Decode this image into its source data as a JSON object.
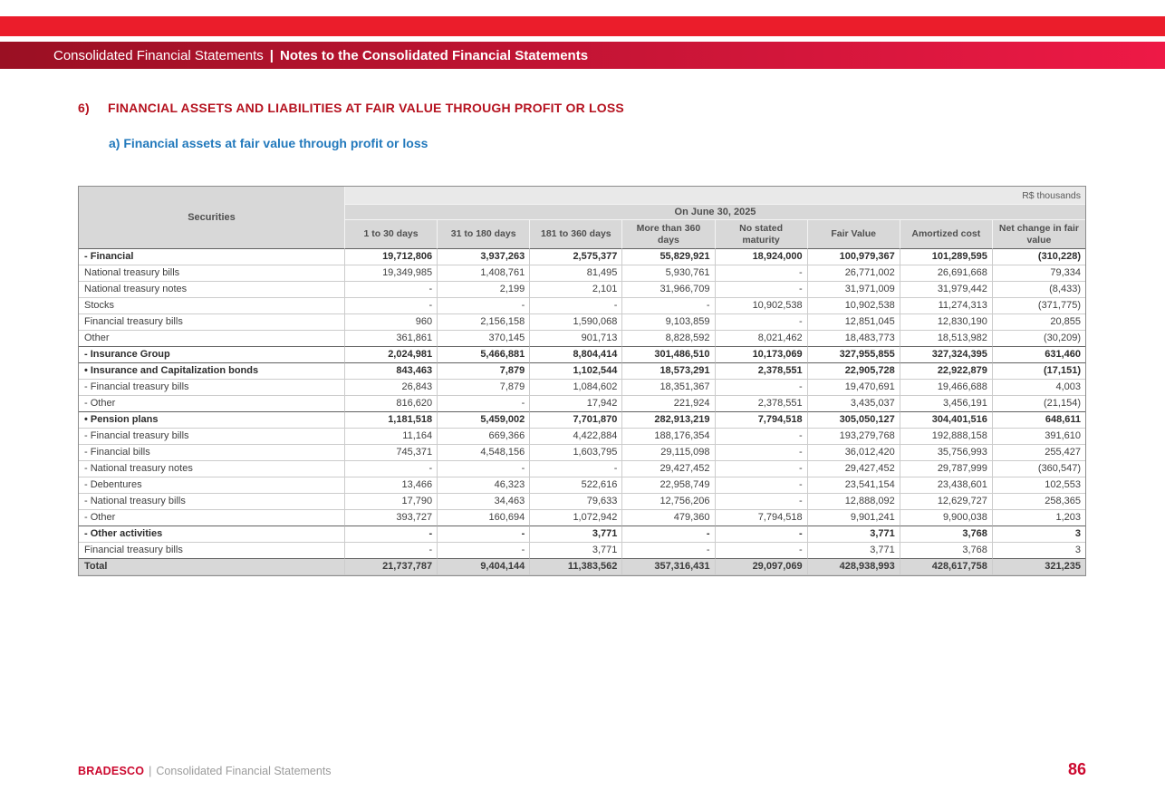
{
  "banner": {
    "title_left": "Consolidated Financial Statements",
    "separator": "|",
    "title_right": "Notes to the Consolidated Financial Statements"
  },
  "section": {
    "number": "6)",
    "title": "FINANCIAL ASSETS AND LIABILITIES AT FAIR VALUE THROUGH PROFIT OR LOSS",
    "subtitle": "a) Financial assets at fair value through profit or loss"
  },
  "table": {
    "units_label": "R$ thousands",
    "date_header": "On June 30, 2025",
    "securities_header": "Securities",
    "columns": [
      "1 to 30 days",
      "31 to 180 days",
      "181 to 360 days",
      "More than 360 days",
      "No stated maturity",
      "Fair Value",
      "Amortized cost",
      "Net change in fair value"
    ],
    "rows": [
      {
        "label": "- Financial",
        "style": "bold",
        "values": [
          "19,712,806",
          "3,937,263",
          "2,575,377",
          "55,829,921",
          "18,924,000",
          "100,979,367",
          "101,289,595",
          "(310,228)"
        ]
      },
      {
        "label": "National treasury bills",
        "style": "normal",
        "values": [
          "19,349,985",
          "1,408,761",
          "81,495",
          "5,930,761",
          "-",
          "26,771,002",
          "26,691,668",
          "79,334"
        ]
      },
      {
        "label": "National treasury notes",
        "style": "normal",
        "values": [
          "-",
          "2,199",
          "2,101",
          "31,966,709",
          "-",
          "31,971,009",
          "31,979,442",
          "(8,433)"
        ]
      },
      {
        "label": "Stocks",
        "style": "normal",
        "values": [
          "-",
          "-",
          "-",
          "-",
          "10,902,538",
          "10,902,538",
          "11,274,313",
          "(371,775)"
        ]
      },
      {
        "label": "Financial treasury bills",
        "style": "normal",
        "values": [
          "960",
          "2,156,158",
          "1,590,068",
          "9,103,859",
          "-",
          "12,851,045",
          "12,830,190",
          "20,855"
        ]
      },
      {
        "label": "Other",
        "style": "normal",
        "values": [
          "361,861",
          "370,145",
          "901,713",
          "8,828,592",
          "8,021,462",
          "18,483,773",
          "18,513,982",
          "(30,209)"
        ]
      },
      {
        "label": "- Insurance Group",
        "style": "bold",
        "values": [
          "2,024,981",
          "5,466,881",
          "8,804,414",
          "301,486,510",
          "10,173,069",
          "327,955,855",
          "327,324,395",
          "631,460"
        ]
      },
      {
        "label": "• Insurance and Capitalization bonds",
        "style": "bold",
        "values": [
          "843,463",
          "7,879",
          "1,102,544",
          "18,573,291",
          "2,378,551",
          "22,905,728",
          "22,922,879",
          "(17,151)"
        ]
      },
      {
        "label": "- Financial treasury bills",
        "style": "normal",
        "values": [
          "26,843",
          "7,879",
          "1,084,602",
          "18,351,367",
          "-",
          "19,470,691",
          "19,466,688",
          "4,003"
        ]
      },
      {
        "label": "- Other",
        "style": "normal",
        "values": [
          "816,620",
          "-",
          "17,942",
          "221,924",
          "2,378,551",
          "3,435,037",
          "3,456,191",
          "(21,154)"
        ]
      },
      {
        "label": "• Pension plans",
        "style": "bold",
        "values": [
          "1,181,518",
          "5,459,002",
          "7,701,870",
          "282,913,219",
          "7,794,518",
          "305,050,127",
          "304,401,516",
          "648,611"
        ]
      },
      {
        "label": "- Financial treasury bills",
        "style": "normal",
        "values": [
          "11,164",
          "669,366",
          "4,422,884",
          "188,176,354",
          "-",
          "193,279,768",
          "192,888,158",
          "391,610"
        ]
      },
      {
        "label": "- Financial bills",
        "style": "normal",
        "values": [
          "745,371",
          "4,548,156",
          "1,603,795",
          "29,115,098",
          "-",
          "36,012,420",
          "35,756,993",
          "255,427"
        ]
      },
      {
        "label": "- National treasury notes",
        "style": "normal",
        "values": [
          "-",
          "-",
          "-",
          "29,427,452",
          "-",
          "29,427,452",
          "29,787,999",
          "(360,547)"
        ]
      },
      {
        "label": "- Debentures",
        "style": "normal",
        "values": [
          "13,466",
          "46,323",
          "522,616",
          "22,958,749",
          "-",
          "23,541,154",
          "23,438,601",
          "102,553"
        ]
      },
      {
        "label": "- National treasury bills",
        "style": "normal",
        "values": [
          "17,790",
          "34,463",
          "79,633",
          "12,756,206",
          "-",
          "12,888,092",
          "12,629,727",
          "258,365"
        ]
      },
      {
        "label": "- Other",
        "style": "normal",
        "values": [
          "393,727",
          "160,694",
          "1,072,942",
          "479,360",
          "7,794,518",
          "9,901,241",
          "9,900,038",
          "1,203"
        ]
      },
      {
        "label": "- Other activities",
        "style": "bold",
        "values": [
          "-",
          "-",
          "3,771",
          "-",
          "-",
          "3,771",
          "3,768",
          "3"
        ]
      },
      {
        "label": "Financial treasury bills",
        "style": "normal",
        "values": [
          "-",
          "-",
          "3,771",
          "-",
          "-",
          "3,771",
          "3,768",
          "3"
        ]
      },
      {
        "label": "Total",
        "style": "total",
        "values": [
          "21,737,787",
          "9,404,144",
          "11,383,562",
          "357,316,431",
          "29,097,069",
          "428,938,993",
          "428,617,758",
          "321,235"
        ]
      }
    ]
  },
  "footer": {
    "brand": "BRADESCO",
    "separator": "|",
    "text": "Consolidated Financial Statements",
    "page_number": "86"
  },
  "colors": {
    "brand_red": "#CC092F",
    "top_strip_red": "#EB1D2B",
    "banner_start": "#9A1023",
    "banner_end": "#EE1946",
    "heading_red": "#B5121F",
    "subheading_blue": "#2279BC",
    "header_gray": "#D8D8D8",
    "units_gray": "#E9E9E9",
    "total_gray": "#D8D8D8"
  }
}
